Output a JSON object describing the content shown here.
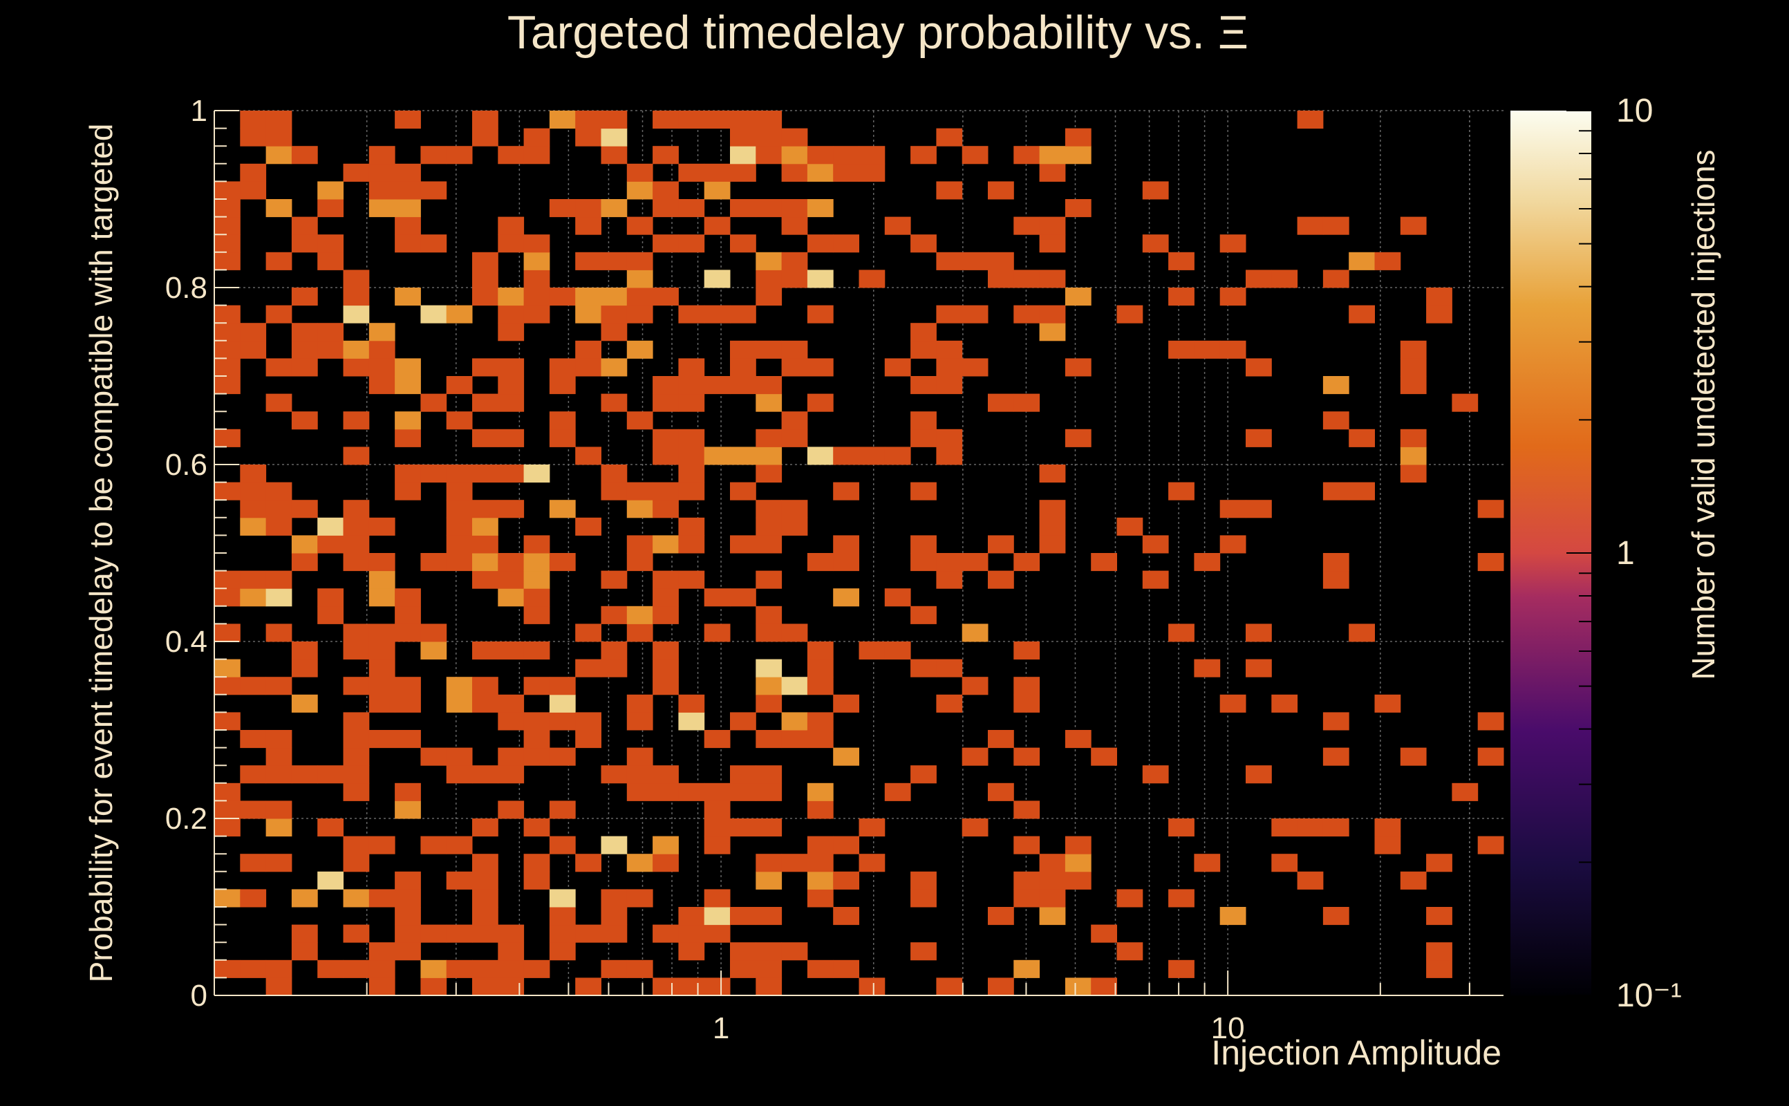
{
  "chart_data": {
    "type": "heatmap",
    "title": "Targeted timedelay probability vs.  Ξ",
    "xlabel": "Injection Amplitude",
    "ylabel": "Probability for event timedelay to be compatible with targeted",
    "zlabel": "Number of valid undetected injections",
    "x_scale": "log",
    "xlim": [
      0.1,
      35
    ],
    "ylim": [
      0,
      1
    ],
    "z_scale": "log",
    "zlim": [
      0.1,
      10
    ],
    "x_tick_labels": [
      "1",
      "10"
    ],
    "y_tick_labels": [
      "0",
      "0.2",
      "0.4",
      "0.6",
      "0.8",
      "1"
    ],
    "z_tick_labels": [
      "10⁻¹",
      "1",
      "10"
    ],
    "grid": true,
    "palette": "inferno",
    "grid_rows": 50,
    "grid_cols": 50,
    "background_color": "#000000",
    "text_color": "#f5e6c8",
    "cells_z1": [
      [
        15,
        0
      ],
      [
        10,
        0
      ],
      [
        4,
        1
      ],
      [
        8,
        1
      ],
      [
        19,
        1
      ],
      [
        28,
        1
      ],
      [
        38,
        1
      ],
      [
        39,
        1
      ],
      [
        42,
        1
      ],
      [
        43,
        1
      ],
      [
        44,
        1
      ],
      [
        47,
        1
      ],
      [
        54,
        1
      ],
      [
        65,
        1
      ],
      [
        68,
        1
      ],
      [
        69,
        1
      ],
      [
        81,
        1
      ],
      [
        88,
        1
      ],
      [
        94,
        1
      ],
      [
        1,
        2
      ],
      [
        2,
        2
      ],
      [
        4,
        2
      ],
      [
        7,
        2
      ],
      [
        11,
        2
      ],
      [
        13,
        2
      ],
      [
        14,
        2
      ],
      [
        23,
        2
      ],
      [
        29,
        2
      ],
      [
        32,
        2
      ],
      [
        40,
        2
      ],
      [
        45,
        2
      ],
      [
        48,
        2
      ],
      [
        49,
        2
      ],
      [
        52,
        2
      ],
      [
        56,
        2
      ],
      [
        59,
        2
      ],
      [
        66,
        2
      ],
      [
        67,
        2
      ],
      [
        72,
        2
      ],
      [
        79,
        2
      ],
      [
        84,
        2
      ],
      [
        89,
        2
      ],
      [
        91,
        2
      ],
      [
        97,
        2
      ],
      [
        2,
        3
      ],
      [
        6,
        3
      ],
      [
        9,
        3
      ],
      [
        14,
        3
      ],
      [
        16,
        3
      ],
      [
        19,
        3
      ],
      [
        21,
        3
      ],
      [
        24,
        3
      ],
      [
        25,
        3
      ],
      [
        33,
        3
      ],
      [
        36,
        3
      ],
      [
        46,
        3
      ],
      [
        53,
        3
      ],
      [
        61,
        3
      ],
      [
        64,
        3
      ],
      [
        75,
        3
      ],
      [
        85,
        3
      ],
      [
        86,
        3
      ],
      [
        87,
        3
      ],
      [
        92,
        3
      ],
      [
        98,
        3
      ],
      [
        5,
        4
      ],
      [
        8,
        4
      ],
      [
        11,
        4
      ],
      [
        20,
        4
      ],
      [
        22,
        4
      ],
      [
        23,
        4
      ],
      [
        27,
        4
      ],
      [
        31,
        4
      ],
      [
        37,
        4
      ],
      [
        48,
        4
      ],
      [
        57,
        4
      ],
      [
        60,
        4
      ],
      [
        62,
        4
      ],
      [
        70,
        4
      ],
      [
        73,
        4
      ],
      [
        77,
        4
      ],
      [
        81,
        4
      ],
      [
        92,
        4
      ],
      [
        99,
        4
      ],
      [
        3,
        5
      ],
      [
        6,
        5
      ],
      [
        12,
        5
      ],
      [
        13,
        5
      ],
      [
        17,
        5
      ],
      [
        21,
        5
      ],
      [
        25,
        5
      ],
      [
        29,
        5
      ],
      [
        33,
        5
      ],
      [
        35,
        5
      ],
      [
        41,
        5
      ],
      [
        45,
        5
      ],
      [
        50,
        5
      ],
      [
        55,
        5
      ],
      [
        63,
        5
      ],
      [
        71,
        5
      ],
      [
        76,
        5
      ],
      [
        80,
        5
      ],
      [
        95,
        5
      ]
    ],
    "cells_z2": [
      [
        0,
        7
      ],
      [
        2,
        3
      ],
      [
        3,
        3
      ],
      [
        5,
        3
      ],
      [
        6,
        4
      ],
      [
        8,
        4
      ],
      [
        11,
        5
      ],
      [
        14,
        5
      ],
      [
        17,
        3
      ],
      [
        19,
        5
      ],
      [
        22,
        6
      ],
      [
        24,
        7
      ],
      [
        26,
        6
      ],
      [
        28,
        7
      ],
      [
        31,
        7
      ],
      [
        34,
        8
      ],
      [
        35,
        8
      ],
      [
        39,
        9
      ],
      [
        42,
        10
      ],
      [
        45,
        11
      ],
      [
        46,
        11
      ],
      [
        47,
        12
      ],
      [
        48,
        13
      ],
      [
        50,
        13
      ],
      [
        52,
        14
      ],
      [
        55,
        15
      ],
      [
        58,
        16
      ],
      [
        60,
        16
      ],
      [
        62,
        17
      ],
      [
        64,
        17
      ],
      [
        67,
        18
      ],
      [
        70,
        19
      ],
      [
        71,
        20
      ],
      [
        73,
        21
      ],
      [
        76,
        22
      ],
      [
        78,
        23
      ],
      [
        80,
        24
      ],
      [
        82,
        24
      ],
      [
        85,
        25
      ],
      [
        87,
        26
      ],
      [
        89,
        27
      ],
      [
        92,
        28
      ],
      [
        94,
        29
      ],
      [
        96,
        29
      ],
      [
        98,
        30
      ]
    ],
    "cells_z3": [
      [
        0,
        1
      ],
      [
        1,
        2
      ],
      [
        2,
        3
      ],
      [
        9,
        14
      ],
      [
        12,
        17
      ],
      [
        16,
        22
      ],
      [
        18,
        24
      ],
      [
        20,
        27
      ],
      [
        23,
        31
      ],
      [
        26,
        34
      ],
      [
        30,
        38
      ],
      [
        33,
        42
      ],
      [
        37,
        46
      ]
    ]
  }
}
